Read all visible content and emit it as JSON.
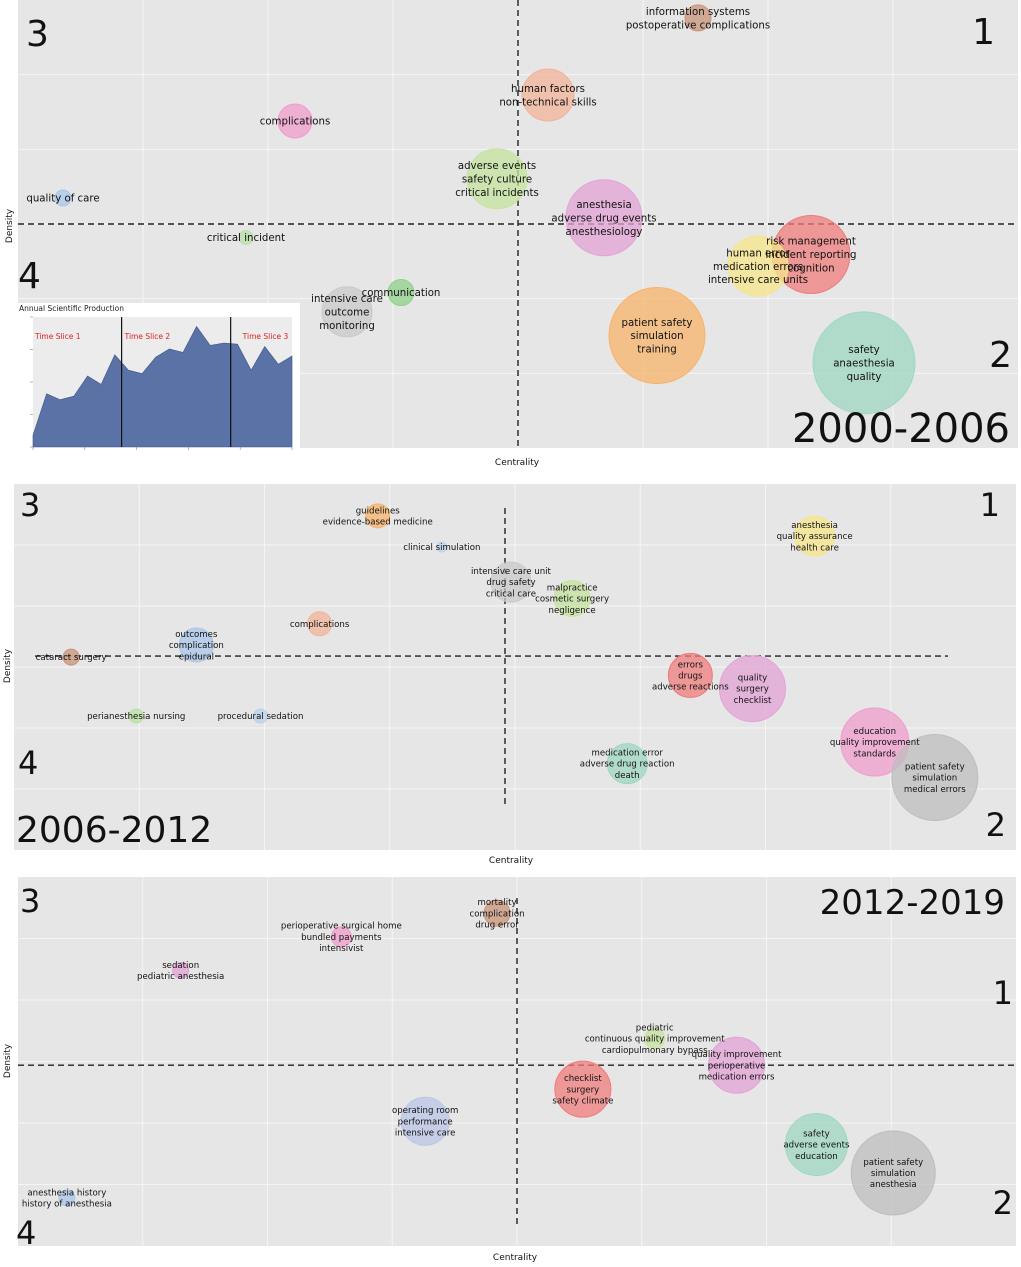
{
  "chart_data": [
    {
      "type": "scatter",
      "subtype": "thematic-map-bubble",
      "title": "2000-2006",
      "xlabel": "Centrality",
      "ylabel": "Density",
      "quadrant_labels": [
        "1",
        "2",
        "3",
        "4"
      ],
      "xlim": [
        0,
        100
      ],
      "ylim": [
        0,
        100
      ],
      "xdiv": 50,
      "ydiv": 50,
      "themes": [
        {
          "terms": [
            "information systems",
            "postoperative complications"
          ],
          "x": 68.0,
          "y": 96.0,
          "size": 13,
          "color": "#c8947a"
        },
        {
          "terms": [
            "human factors",
            "non-technical skills"
          ],
          "x": 53.0,
          "y": 78.8,
          "size": 26,
          "color": "#f2b398"
        },
        {
          "terms": [
            "complications"
          ],
          "x": 27.7,
          "y": 73.0,
          "size": 17,
          "color": "#ef9ccb"
        },
        {
          "terms": [
            "adverse events",
            "safety culture",
            "critical incidents"
          ],
          "x": 47.9,
          "y": 60.1,
          "size": 30,
          "color": "#c6e39e"
        },
        {
          "terms": [
            "quality of care"
          ],
          "x": 4.5,
          "y": 55.8,
          "size": 8,
          "color": "#a9c6e8"
        },
        {
          "terms": [
            "anesthesia",
            "adverse drug events",
            "anesthesiology"
          ],
          "x": 58.6,
          "y": 51.4,
          "size": 38,
          "color": "#e3a2d6"
        },
        {
          "terms": [
            "critical incident"
          ],
          "x": 22.8,
          "y": 47.0,
          "size": 7,
          "color": "#b9e0a6"
        },
        {
          "terms": [
            "risk management",
            "incident reporting",
            "cognition"
          ],
          "x": 79.3,
          "y": 43.2,
          "size": 39,
          "color": "#ef7c7c"
        },
        {
          "terms": [
            "human error",
            "medication errors",
            "intensive care units"
          ],
          "x": 74.0,
          "y": 40.6,
          "size": 30,
          "color": "#f6e58a"
        },
        {
          "terms": [
            "communication"
          ],
          "x": 38.3,
          "y": 34.7,
          "size": 13,
          "color": "#8fd089"
        },
        {
          "terms": [
            "intensive care",
            "outcome",
            "monitoring"
          ],
          "x": 32.9,
          "y": 30.4,
          "size": 25,
          "color": "#c9c9c9"
        },
        {
          "terms": [
            "patient safety",
            "simulation",
            "training"
          ],
          "x": 63.9,
          "y": 25.1,
          "size": 48,
          "color": "#f7b36a"
        },
        {
          "terms": [
            "safety",
            "anaesthesia",
            "quality"
          ],
          "x": 84.6,
          "y": 19.0,
          "size": 51,
          "color": "#9ed7c1"
        }
      ],
      "inset": {
        "type": "area",
        "title": "Annual Scientific Production",
        "time_slices": [
          "Time Slice 1",
          "Time Slice 2",
          "Time Slice 3"
        ],
        "series": [
          {
            "name": "Annual Scientific Production",
            "values": [
              1,
              4.5,
              4,
              4.3,
              6,
              5.3,
              7.8,
              6.5,
              6.2,
              7.6,
              8.3,
              8,
              10.2,
              8.6,
              8.8,
              8.7,
              6.5,
              8.5,
              7,
              7.7
            ]
          }
        ],
        "ylim": [
          0,
          11
        ],
        "slice_breaks": [
          6.5,
          14.5
        ]
      }
    },
    {
      "type": "scatter",
      "subtype": "thematic-map-bubble",
      "title": "2006-2012",
      "xlabel": "Centrality",
      "ylabel": "Density",
      "quadrant_labels": [
        "1",
        "2",
        "3",
        "4"
      ],
      "xlim": [
        0,
        100
      ],
      "ylim": [
        0,
        100
      ],
      "xdiv": 49,
      "ydiv": 53,
      "themes": [
        {
          "terms": [
            "guidelines",
            "evidence-based medicine"
          ],
          "x": 36.3,
          "y": 91.3,
          "size": 12,
          "color": "#f7b36a"
        },
        {
          "terms": [
            "anesthesia",
            "quality assurance",
            "health care"
          ],
          "x": 79.9,
          "y": 85.8,
          "size": 20,
          "color": "#f6e58a"
        },
        {
          "terms": [
            "clinical simulation"
          ],
          "x": 42.7,
          "y": 82.8,
          "size": 5,
          "color": "#b9d1ea"
        },
        {
          "terms": [
            "intensive care unit",
            "drug safety",
            "critical care"
          ],
          "x": 49.6,
          "y": 73.2,
          "size": 20,
          "color": "#c9c9c9"
        },
        {
          "terms": [
            "malpractice",
            "cosmetic surgery",
            "negligence"
          ],
          "x": 55.7,
          "y": 68.7,
          "size": 18,
          "color": "#c6e39e"
        },
        {
          "terms": [
            "complications"
          ],
          "x": 30.5,
          "y": 61.8,
          "size": 12,
          "color": "#f2b398"
        },
        {
          "terms": [
            "outcomes",
            "complication",
            "epidural"
          ],
          "x": 18.2,
          "y": 56.0,
          "size": 17,
          "color": "#a9c6e8"
        },
        {
          "terms": [
            "cataract surgery"
          ],
          "x": 5.7,
          "y": 52.7,
          "size": 8,
          "color": "#c8947a"
        },
        {
          "terms": [
            "errors",
            "drugs",
            "adverse reactions"
          ],
          "x": 67.5,
          "y": 47.7,
          "size": 22,
          "color": "#ef7c7c"
        },
        {
          "terms": [
            "quality",
            "surgery",
            "checklist"
          ],
          "x": 73.7,
          "y": 44.1,
          "size": 33,
          "color": "#e3a2d6"
        },
        {
          "terms": [
            "perianesthesia nursing"
          ],
          "x": 12.2,
          "y": 36.6,
          "size": 7,
          "color": "#b9e0a6"
        },
        {
          "terms": [
            "procedural sedation"
          ],
          "x": 24.6,
          "y": 36.6,
          "size": 7,
          "color": "#b9d1ea"
        },
        {
          "terms": [
            "medication error",
            "adverse drug reaction",
            "death"
          ],
          "x": 61.2,
          "y": 23.6,
          "size": 20,
          "color": "#9ed7c1"
        },
        {
          "terms": [
            "education",
            "quality improvement",
            "standards"
          ],
          "x": 85.9,
          "y": 29.5,
          "size": 34,
          "color": "#ef9ccb"
        },
        {
          "terms": [
            "patient safety",
            "simulation",
            "medical errors"
          ],
          "x": 91.9,
          "y": 19.8,
          "size": 43,
          "color": "#bdbdbd"
        }
      ]
    },
    {
      "type": "scatter",
      "subtype": "thematic-map-bubble",
      "title": "2012-2019",
      "xlabel": "Centrality",
      "ylabel": "Density",
      "quadrant_labels": [
        "1",
        "2",
        "3",
        "4"
      ],
      "xlim": [
        0,
        100
      ],
      "ylim": [
        0,
        100
      ],
      "xdiv": 50,
      "ydiv": 49,
      "themes": [
        {
          "terms": [
            "mortality",
            "complication",
            "drug error"
          ],
          "x": 48.0,
          "y": 90.2,
          "size": 13,
          "color": "#c8947a"
        },
        {
          "terms": [
            "perioperative surgical home",
            "bundled payments",
            "intensivist"
          ],
          "x": 32.4,
          "y": 83.8,
          "size": 10,
          "color": "#ef9ccb"
        },
        {
          "terms": [
            "sedation",
            "pediatric anesthesia"
          ],
          "x": 16.3,
          "y": 74.7,
          "size": 8,
          "color": "#e3a2d6"
        },
        {
          "terms": [
            "pediatric",
            "continuous quality improvement",
            "cardiopulmonary bypass"
          ],
          "x": 63.8,
          "y": 56.2,
          "size": 10,
          "color": "#c6e39e"
        },
        {
          "terms": [
            "quality improvement",
            "perioperative",
            "medication errors"
          ],
          "x": 72.0,
          "y": 49.0,
          "size": 28,
          "color": "#e3a2d6"
        },
        {
          "terms": [
            "checklist",
            "surgery",
            "safety climate"
          ],
          "x": 56.6,
          "y": 42.5,
          "size": 28,
          "color": "#ef7c7c"
        },
        {
          "terms": [
            "operating room",
            "performance",
            "intensive care"
          ],
          "x": 40.8,
          "y": 33.8,
          "size": 24,
          "color": "#b9c6e6"
        },
        {
          "terms": [
            "safety",
            "adverse events",
            "education"
          ],
          "x": 80.0,
          "y": 27.5,
          "size": 31,
          "color": "#9ed7c1"
        },
        {
          "terms": [
            "patient safety",
            "simulation",
            "anesthesia"
          ],
          "x": 87.7,
          "y": 19.8,
          "size": 42,
          "color": "#bdbdbd"
        },
        {
          "terms": [
            "anesthesia history",
            "history of anesthesia"
          ],
          "x": 4.9,
          "y": 13.0,
          "size": 8,
          "color": "#a9c6e8"
        }
      ]
    }
  ]
}
